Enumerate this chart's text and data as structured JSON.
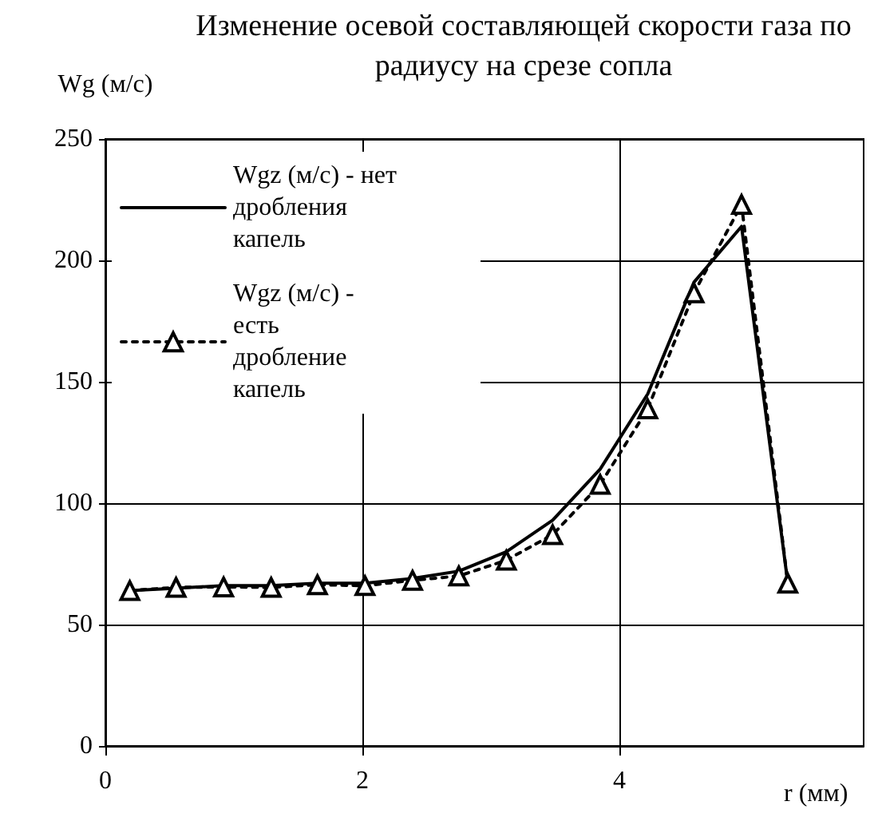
{
  "chart_data": {
    "type": "line",
    "title": "Изменение осевой составляющей скорости газа по радиусу на срезе сопла",
    "xlabel": "r (мм)",
    "ylabel": "Wg (м/с)",
    "x": [
      0.19,
      0.55,
      0.92,
      1.29,
      1.65,
      2.02,
      2.39,
      2.75,
      3.12,
      3.48,
      3.85,
      4.22,
      4.58,
      4.95,
      5.31
    ],
    "series": [
      {
        "name": "Wgz (м/с) - нет дробления капель",
        "color": "#000000",
        "marker": "none",
        "line_style": "solid",
        "values": [
          64,
          65,
          66,
          66,
          67,
          67,
          69,
          72,
          80,
          93,
          114,
          145,
          191,
          214,
          67
        ]
      },
      {
        "name": "Wgz (м/с) - есть дробление капель",
        "color": "#000000",
        "marker": "triangle",
        "line_style": "dotted",
        "values": [
          64,
          65.3,
          65.5,
          65.3,
          66.4,
          66,
          68.2,
          70,
          76.5,
          87,
          107.7,
          138.8,
          186.6,
          223,
          67
        ]
      }
    ],
    "xlim": [
      0,
      5.9
    ],
    "xticks": [
      0,
      2,
      4
    ],
    "ylim": [
      0,
      250
    ],
    "yticks": [
      0,
      50,
      100,
      150,
      200,
      250
    ],
    "grid": true,
    "legend": "top left"
  }
}
